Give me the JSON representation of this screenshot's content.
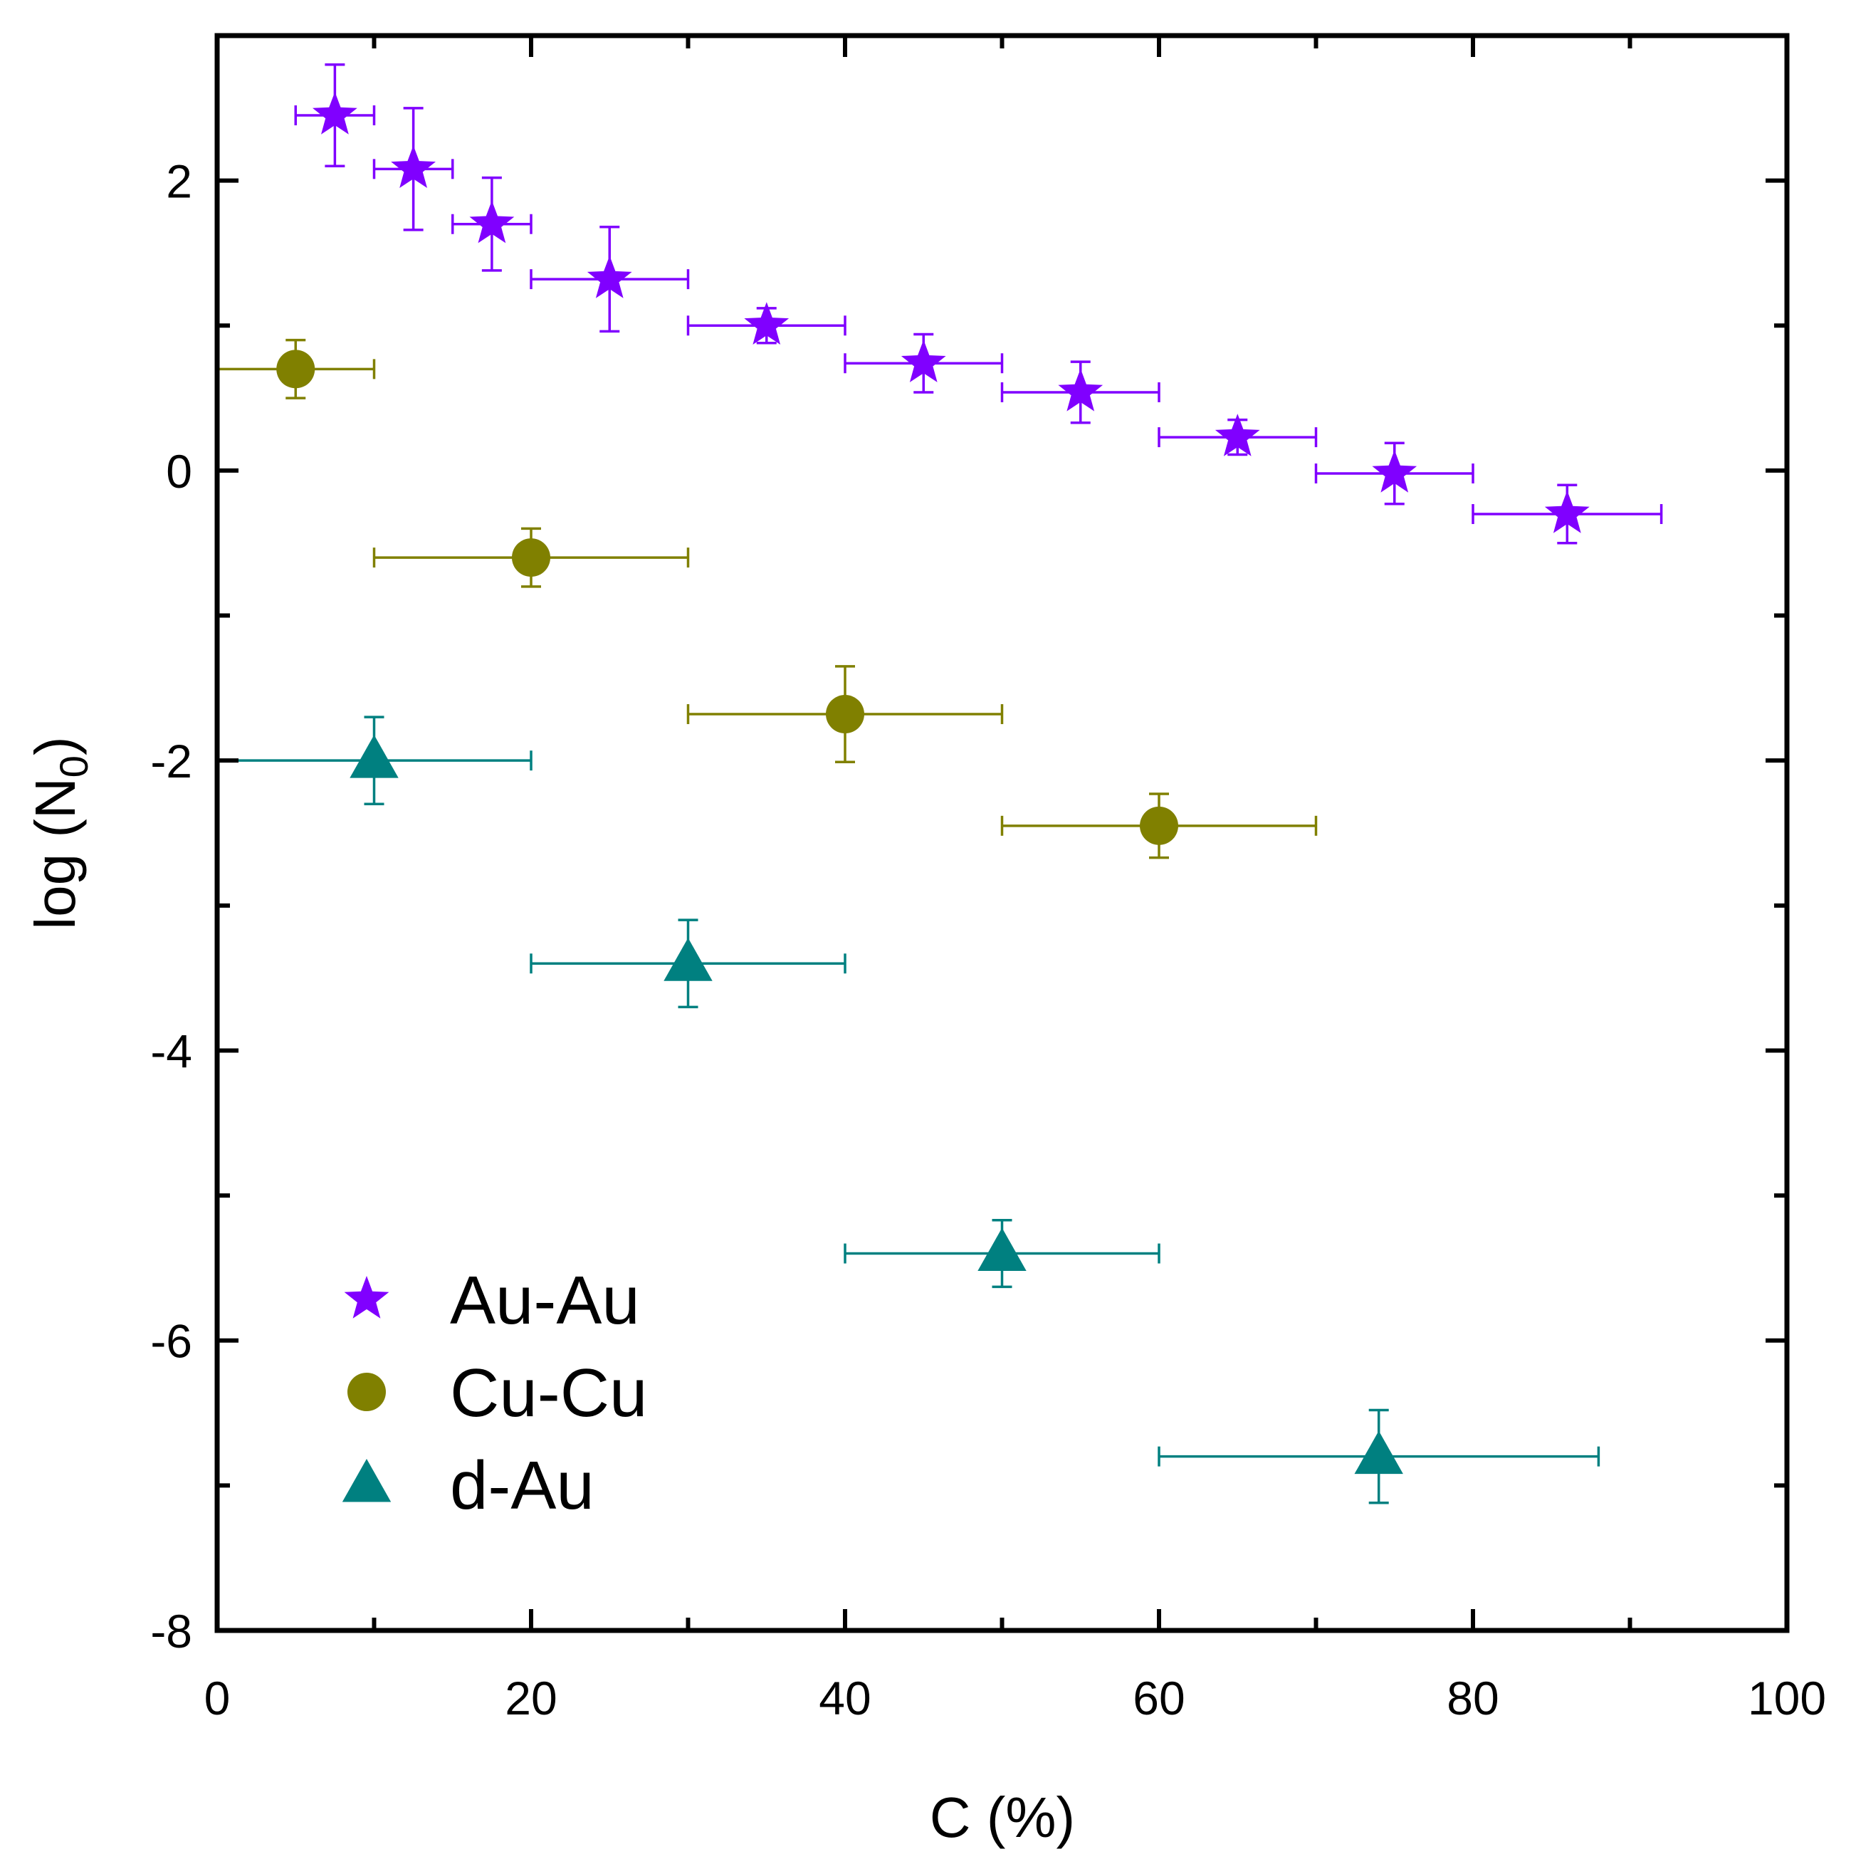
{
  "chart_data": {
    "type": "scatter",
    "xlabel": "C (%)",
    "ylabel_main": "log (N",
    "ylabel_sub": "0",
    "ylabel_close": ")",
    "xlim": [
      0,
      100
    ],
    "ylim": [
      -8,
      3
    ],
    "x_major_ticks": [
      0,
      20,
      40,
      60,
      80,
      100
    ],
    "x_tick_labels": [
      "0",
      "20",
      "40",
      "60",
      "80",
      "100"
    ],
    "x_minor_ticks": [
      10,
      30,
      50,
      70,
      90
    ],
    "y_major_ticks": [
      -8,
      -6,
      -4,
      -2,
      0,
      2
    ],
    "y_tick_labels": [
      "-8",
      "-6",
      "-4",
      "-2",
      "0",
      "2"
    ],
    "y_minor_ticks": [
      -7,
      -5,
      -3,
      -1,
      1
    ],
    "grid": false,
    "legend_position": "bottom-left",
    "series": [
      {
        "name": "Au-Au",
        "marker": "star",
        "color": "#8000ff",
        "points": [
          {
            "x": 7.5,
            "y": 2.45,
            "xerr": 2.5,
            "yerr": 0.35
          },
          {
            "x": 12.5,
            "y": 2.08,
            "xerr": 2.5,
            "yerr": 0.42
          },
          {
            "x": 17.5,
            "y": 1.7,
            "xerr": 2.5,
            "yerr": 0.32
          },
          {
            "x": 25,
            "y": 1.32,
            "xerr": 5,
            "yerr": 0.36
          },
          {
            "x": 35,
            "y": 1.0,
            "xerr": 5,
            "yerr": 0.12
          },
          {
            "x": 45,
            "y": 0.74,
            "xerr": 5,
            "yerr": 0.2
          },
          {
            "x": 55,
            "y": 0.54,
            "xerr": 5,
            "yerr": 0.21
          },
          {
            "x": 65,
            "y": 0.23,
            "xerr": 5,
            "yerr": 0.12
          },
          {
            "x": 75,
            "y": -0.02,
            "xerr": 5,
            "yerr": 0.21
          },
          {
            "x": 86,
            "y": -0.3,
            "xerr": 6,
            "yerr": 0.2
          }
        ]
      },
      {
        "name": "Cu-Cu",
        "marker": "circle",
        "color": "#808000",
        "points": [
          {
            "x": 5,
            "y": 0.7,
            "xerr": 5,
            "yerr": 0.2
          },
          {
            "x": 20,
            "y": -0.6,
            "xerr": 10,
            "yerr": 0.2
          },
          {
            "x": 40,
            "y": -1.68,
            "xerr": 10,
            "yerr": 0.33
          },
          {
            "x": 60,
            "y": -2.45,
            "xerr": 10,
            "yerr": 0.22
          }
        ]
      },
      {
        "name": "d-Au",
        "marker": "triangle",
        "color": "#008080",
        "points": [
          {
            "x": 10,
            "y": -2.0,
            "xerr": 10,
            "yerr": 0.3
          },
          {
            "x": 30,
            "y": -3.4,
            "xerr": 10,
            "yerr": 0.3
          },
          {
            "x": 50,
            "y": -5.4,
            "xerr": 10,
            "yerr": 0.23
          },
          {
            "x": 74,
            "y": -6.8,
            "xerr": 14,
            "yerr": 0.32
          }
        ]
      }
    ]
  }
}
